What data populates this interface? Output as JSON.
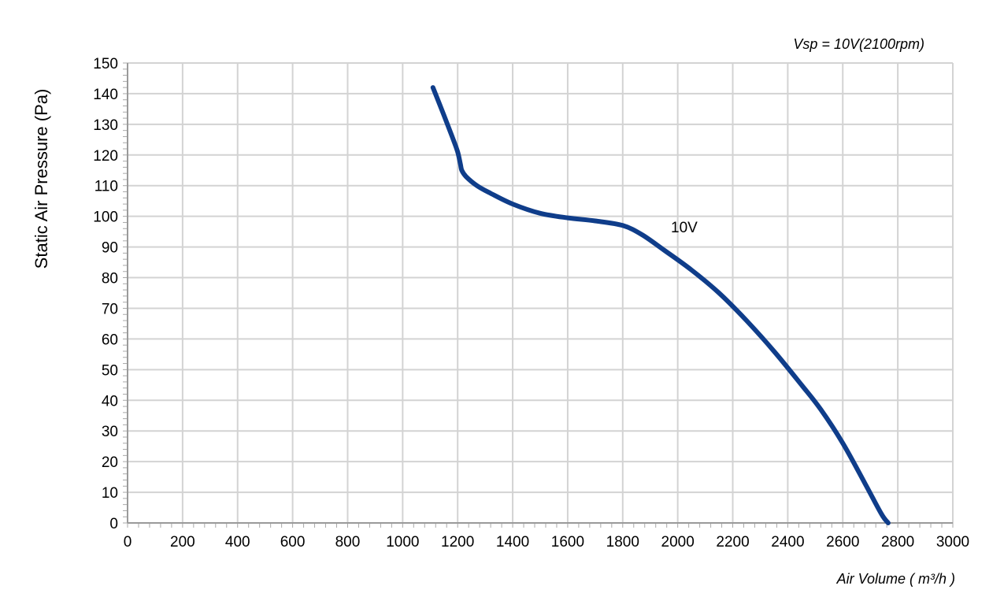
{
  "chart_data": {
    "type": "line",
    "title": "",
    "note": "Vsp = 10V(2100rpm)",
    "xlabel": "Air Volume ( m³/h )",
    "ylabel": "Static Air Pressure  (Pa)",
    "xlim": [
      0,
      3000
    ],
    "ylim": [
      0,
      150
    ],
    "x_ticks": [
      "0",
      "200",
      "400",
      "600",
      "800",
      "1000",
      "1200",
      "1400",
      "1600",
      "1800",
      "2000",
      "2200",
      "2400",
      "2600",
      "2800",
      "3000"
    ],
    "y_ticks": [
      "0",
      "10",
      "20",
      "30",
      "40",
      "50",
      "60",
      "70",
      "80",
      "90",
      "100",
      "110",
      "120",
      "130",
      "140",
      "150"
    ],
    "grid": true,
    "line_color": "#0f3d8a",
    "grid_color": "#d3d3d3",
    "series": [
      {
        "name": "10V",
        "x": [
          1110,
          1150,
          1180,
          1200,
          1210,
          1215,
          1230,
          1270,
          1320,
          1400,
          1500,
          1600,
          1700,
          1800,
          1870,
          1950,
          2050,
          2150,
          2250,
          2350,
          2450,
          2520,
          2600,
          2680,
          2740,
          2765
        ],
        "y": [
          142,
          133,
          126,
          121,
          117,
          115,
          113,
          110,
          107.5,
          104,
          101,
          99.5,
          98.5,
          97,
          94,
          89,
          82.5,
          75,
          66,
          56,
          45,
          37,
          26,
          13,
          3,
          0
        ]
      }
    ]
  }
}
